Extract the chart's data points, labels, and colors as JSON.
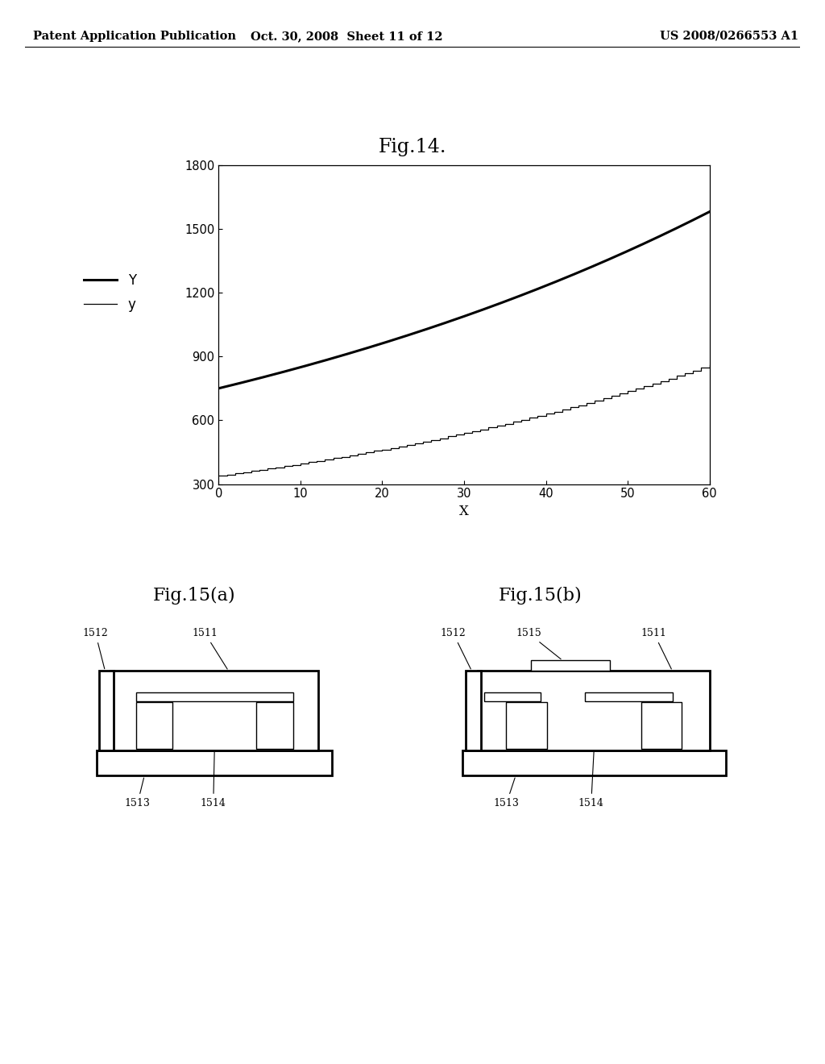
{
  "bg_color": "#ffffff",
  "header_left": "Patent Application Publication",
  "header_mid": "Oct. 30, 2008  Sheet 11 of 12",
  "header_right": "US 2008/0266553 A1",
  "fig14_title": "Fig.14.",
  "fig14_xlabel": "X",
  "fig14_xlim": [
    0,
    60
  ],
  "fig14_ylim": [
    300,
    1800
  ],
  "fig14_xticks": [
    0,
    10,
    20,
    30,
    40,
    50,
    60
  ],
  "fig14_yticks": [
    300,
    600,
    900,
    1200,
    1500,
    1800
  ],
  "fig14_legend_Y": "Y",
  "fig14_legend_y": "y",
  "fig15a_title": "Fig.15(a)",
  "fig15b_title": "Fig.15(b)",
  "labels_15a": [
    "1512",
    "1511",
    "1513",
    "1514"
  ],
  "labels_15b": [
    "1512",
    "1515",
    "1511",
    "1513",
    "1514"
  ]
}
